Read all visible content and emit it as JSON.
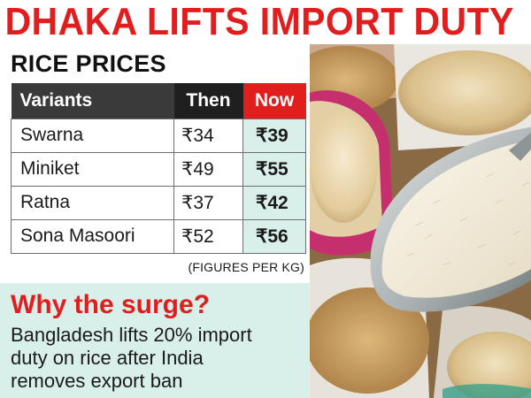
{
  "headline": "DHAKA LIFTS IMPORT DUTY",
  "section_title": "RICE PRICES",
  "table": {
    "headers": {
      "variant": "Variants",
      "then": "Then",
      "now": "Now"
    },
    "rows": [
      {
        "variant": "Swarna",
        "then": "₹34",
        "now": "₹39"
      },
      {
        "variant": "Miniket",
        "then": "₹49",
        "now": "₹55"
      },
      {
        "variant": "Ratna",
        "then": "₹37",
        "now": "₹42"
      },
      {
        "variant": "Sona Masoori",
        "then": "₹52",
        "now": "₹56"
      }
    ]
  },
  "footnote": "(FIGURES PER KG)",
  "surge": {
    "title": "Why the surge?",
    "line1": "Bangladesh lifts 20% import",
    "line2": "duty on rice after India",
    "line3": "removes export ban"
  },
  "colors": {
    "headline_red": "#e21d1d",
    "header_dark": "#3a3a3a",
    "now_red": "#e21d1d",
    "mint": "#d9efe9"
  }
}
